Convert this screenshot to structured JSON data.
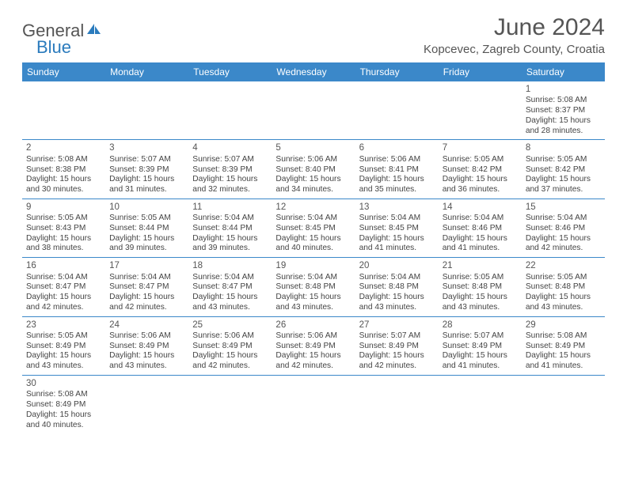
{
  "brand": {
    "text1": "General",
    "text2": "Blue"
  },
  "title": "June 2024",
  "location": "Kopcevec, Zagreb County, Croatia",
  "colors": {
    "header_bg": "#3b88c9",
    "header_text": "#ffffff",
    "rule": "#3b88c9",
    "body_text": "#444444",
    "title_text": "#555555"
  },
  "weekdays": [
    "Sunday",
    "Monday",
    "Tuesday",
    "Wednesday",
    "Thursday",
    "Friday",
    "Saturday"
  ],
  "grid": [
    [
      null,
      null,
      null,
      null,
      null,
      null,
      {
        "n": "1",
        "sr": "5:08 AM",
        "ss": "8:37 PM",
        "dl": "15 hours and 28 minutes."
      }
    ],
    [
      {
        "n": "2",
        "sr": "5:08 AM",
        "ss": "8:38 PM",
        "dl": "15 hours and 30 minutes."
      },
      {
        "n": "3",
        "sr": "5:07 AM",
        "ss": "8:39 PM",
        "dl": "15 hours and 31 minutes."
      },
      {
        "n": "4",
        "sr": "5:07 AM",
        "ss": "8:39 PM",
        "dl": "15 hours and 32 minutes."
      },
      {
        "n": "5",
        "sr": "5:06 AM",
        "ss": "8:40 PM",
        "dl": "15 hours and 34 minutes."
      },
      {
        "n": "6",
        "sr": "5:06 AM",
        "ss": "8:41 PM",
        "dl": "15 hours and 35 minutes."
      },
      {
        "n": "7",
        "sr": "5:05 AM",
        "ss": "8:42 PM",
        "dl": "15 hours and 36 minutes."
      },
      {
        "n": "8",
        "sr": "5:05 AM",
        "ss": "8:42 PM",
        "dl": "15 hours and 37 minutes."
      }
    ],
    [
      {
        "n": "9",
        "sr": "5:05 AM",
        "ss": "8:43 PM",
        "dl": "15 hours and 38 minutes."
      },
      {
        "n": "10",
        "sr": "5:05 AM",
        "ss": "8:44 PM",
        "dl": "15 hours and 39 minutes."
      },
      {
        "n": "11",
        "sr": "5:04 AM",
        "ss": "8:44 PM",
        "dl": "15 hours and 39 minutes."
      },
      {
        "n": "12",
        "sr": "5:04 AM",
        "ss": "8:45 PM",
        "dl": "15 hours and 40 minutes."
      },
      {
        "n": "13",
        "sr": "5:04 AM",
        "ss": "8:45 PM",
        "dl": "15 hours and 41 minutes."
      },
      {
        "n": "14",
        "sr": "5:04 AM",
        "ss": "8:46 PM",
        "dl": "15 hours and 41 minutes."
      },
      {
        "n": "15",
        "sr": "5:04 AM",
        "ss": "8:46 PM",
        "dl": "15 hours and 42 minutes."
      }
    ],
    [
      {
        "n": "16",
        "sr": "5:04 AM",
        "ss": "8:47 PM",
        "dl": "15 hours and 42 minutes."
      },
      {
        "n": "17",
        "sr": "5:04 AM",
        "ss": "8:47 PM",
        "dl": "15 hours and 42 minutes."
      },
      {
        "n": "18",
        "sr": "5:04 AM",
        "ss": "8:47 PM",
        "dl": "15 hours and 43 minutes."
      },
      {
        "n": "19",
        "sr": "5:04 AM",
        "ss": "8:48 PM",
        "dl": "15 hours and 43 minutes."
      },
      {
        "n": "20",
        "sr": "5:04 AM",
        "ss": "8:48 PM",
        "dl": "15 hours and 43 minutes."
      },
      {
        "n": "21",
        "sr": "5:05 AM",
        "ss": "8:48 PM",
        "dl": "15 hours and 43 minutes."
      },
      {
        "n": "22",
        "sr": "5:05 AM",
        "ss": "8:48 PM",
        "dl": "15 hours and 43 minutes."
      }
    ],
    [
      {
        "n": "23",
        "sr": "5:05 AM",
        "ss": "8:49 PM",
        "dl": "15 hours and 43 minutes."
      },
      {
        "n": "24",
        "sr": "5:06 AM",
        "ss": "8:49 PM",
        "dl": "15 hours and 43 minutes."
      },
      {
        "n": "25",
        "sr": "5:06 AM",
        "ss": "8:49 PM",
        "dl": "15 hours and 42 minutes."
      },
      {
        "n": "26",
        "sr": "5:06 AM",
        "ss": "8:49 PM",
        "dl": "15 hours and 42 minutes."
      },
      {
        "n": "27",
        "sr": "5:07 AM",
        "ss": "8:49 PM",
        "dl": "15 hours and 42 minutes."
      },
      {
        "n": "28",
        "sr": "5:07 AM",
        "ss": "8:49 PM",
        "dl": "15 hours and 41 minutes."
      },
      {
        "n": "29",
        "sr": "5:08 AM",
        "ss": "8:49 PM",
        "dl": "15 hours and 41 minutes."
      }
    ],
    [
      {
        "n": "30",
        "sr": "5:08 AM",
        "ss": "8:49 PM",
        "dl": "15 hours and 40 minutes."
      },
      null,
      null,
      null,
      null,
      null,
      null
    ]
  ],
  "labels": {
    "sunrise": "Sunrise:",
    "sunset": "Sunset:",
    "daylight": "Daylight:"
  }
}
